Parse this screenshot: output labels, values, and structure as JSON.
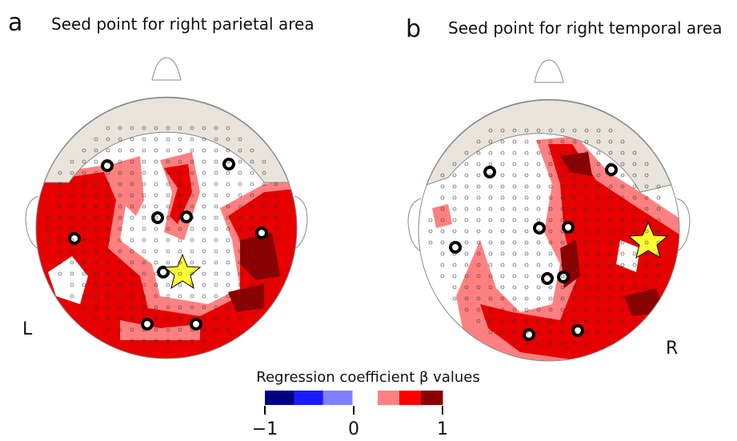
{
  "panels": [
    {
      "label": "a",
      "title": "Seed point for right parietal area",
      "side_label": "L"
    },
    {
      "label": "b",
      "title": "Seed point for right temporal area",
      "side_label": "R"
    }
  ],
  "colorbar": {
    "title": "Regression coefficient β values",
    "lim": [
      -1,
      1
    ],
    "ticks": [
      {
        "value": -1,
        "label": "−1"
      },
      0,
      1
    ],
    "negative_colors": [
      "#00007f",
      "#1a1aff",
      "#8080ff"
    ],
    "positive_colors": [
      "#ff8080",
      "#ff0000",
      "#8b0000"
    ]
  }
}
